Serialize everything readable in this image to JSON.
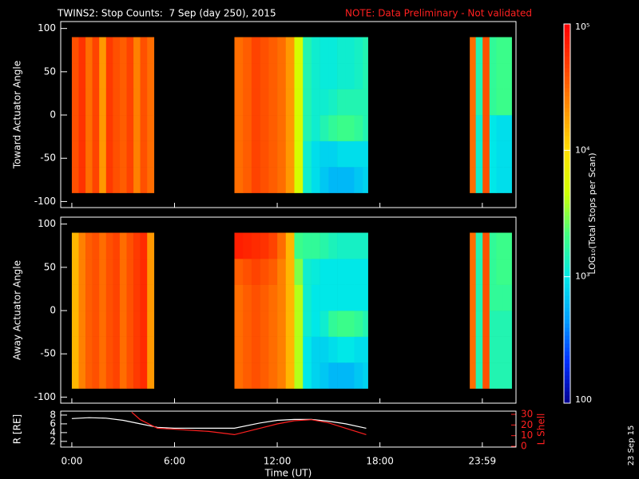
{
  "title": "TWINS2: Stop Counts:  7 Sep (day 250), 2015",
  "note": "NOTE: Data Preliminary - Not validated",
  "date_stamp": "23 Sep 15",
  "colorbar": {
    "label": "LOG₁₀(Total Stops per Scan)",
    "log": true,
    "lim": [
      100,
      100000
    ],
    "ticks": [
      {
        "value": 100000,
        "label": "10⁵"
      },
      {
        "value": 10000,
        "label": "10⁴"
      },
      {
        "value": 1000,
        "label": "10³"
      },
      100
    ],
    "colormap": [
      "#000090",
      "#0030ff",
      "#00a0ff",
      "#00e8e8",
      "#40ff80",
      "#d0ff00",
      "#ffe000",
      "#ff9000",
      "#ff4000",
      "#ff0000"
    ]
  },
  "chart_data": [
    {
      "type": "heatmap",
      "ylabel": "Toward Actuator Angle",
      "xlim": [
        -0.65,
        25.95
      ],
      "ylim": [
        -107,
        108
      ],
      "yticks": [
        -100,
        -50,
        0,
        50,
        100
      ],
      "y_bins": [
        -90,
        -60,
        -30,
        0,
        30,
        60,
        90
      ],
      "blocks": [
        {
          "x_bins": [
            0,
            0.4,
            0.8,
            1.2,
            1.6,
            2.0,
            2.4,
            2.8,
            3.2,
            3.6,
            4.0,
            4.4,
            4.8
          ],
          "values": [
            [
              40000,
              55000,
              30000,
              45000,
              20000,
              50000,
              40000,
              35000,
              45000,
              25000,
              40000,
              30000
            ],
            [
              40000,
              55000,
              30000,
              45000,
              20000,
              50000,
              40000,
              35000,
              45000,
              25000,
              40000,
              30000
            ],
            [
              40000,
              55000,
              30000,
              45000,
              20000,
              50000,
              40000,
              35000,
              45000,
              25000,
              40000,
              30000
            ],
            [
              40000,
              55000,
              30000,
              45000,
              20000,
              50000,
              40000,
              35000,
              45000,
              25000,
              40000,
              30000
            ],
            [
              40000,
              55000,
              30000,
              45000,
              20000,
              50000,
              40000,
              35000,
              45000,
              25000,
              40000,
              30000
            ],
            [
              40000,
              55000,
              30000,
              45000,
              20000,
              50000,
              40000,
              35000,
              45000,
              25000,
              40000,
              30000
            ]
          ]
        },
        {
          "x_bins": [
            9.5,
            10,
            10.5,
            11,
            11.5,
            12,
            12.5,
            13,
            13.5,
            14,
            14.5,
            15,
            15.5,
            16,
            16.5,
            17,
            17.3
          ],
          "values": [
            [
              30000,
              35000,
              45000,
              40000,
              35000,
              30000,
              20000,
              5000,
              1200,
              900,
              700,
              600,
              600,
              600,
              700,
              800
            ],
            [
              30000,
              35000,
              45000,
              40000,
              35000,
              30000,
              20000,
              5000,
              1200,
              900,
              800,
              800,
              900,
              900,
              900,
              900
            ],
            [
              30000,
              35000,
              45000,
              40000,
              35000,
              30000,
              20000,
              5000,
              1500,
              1200,
              1500,
              1800,
              2000,
              2000,
              1800,
              1500
            ],
            [
              30000,
              35000,
              45000,
              40000,
              35000,
              30000,
              20000,
              5000,
              1500,
              1200,
              1200,
              1300,
              1500,
              1500,
              1500,
              1500
            ],
            [
              30000,
              35000,
              45000,
              40000,
              35000,
              30000,
              20000,
              5000,
              1500,
              1200,
              1100,
              1100,
              1200,
              1200,
              1300,
              1500
            ],
            [
              30000,
              35000,
              45000,
              40000,
              35000,
              30000,
              20000,
              5000,
              1500,
              1200,
              1100,
              1100,
              1200,
              1200,
              1300,
              1500
            ]
          ]
        },
        {
          "x_bins": [
            23.25,
            23.6,
            24,
            24.4,
            24.8,
            25.2,
            25.7
          ],
          "values": [
            [
              30000,
              1200,
              40000,
              1000,
              900,
              900
            ],
            [
              30000,
              1200,
              40000,
              1000,
              900,
              900
            ],
            [
              30000,
              1200,
              40000,
              1000,
              900,
              900
            ],
            [
              30000,
              1500,
              40000,
              1800,
              2000,
              2000
            ],
            [
              30000,
              1500,
              40000,
              1800,
              2000,
              2000
            ],
            [
              30000,
              1500,
              40000,
              1800,
              2000,
              2000
            ]
          ]
        }
      ]
    },
    {
      "type": "heatmap",
      "ylabel": "Away Actuator Angle",
      "xlim": [
        -0.65,
        25.95
      ],
      "ylim": [
        -107,
        108
      ],
      "yticks": [
        -100,
        -50,
        0,
        50,
        100
      ],
      "y_bins": [
        -90,
        -60,
        -30,
        0,
        30,
        60,
        90
      ],
      "blocks": [
        {
          "x_bins": [
            0,
            0.4,
            0.8,
            1.2,
            1.6,
            2.0,
            2.4,
            2.8,
            3.2,
            3.6,
            4.0,
            4.4,
            4.8
          ],
          "values": [
            [
              15000,
              25000,
              35000,
              40000,
              30000,
              40000,
              45000,
              30000,
              40000,
              50000,
              60000,
              20000
            ],
            [
              15000,
              25000,
              35000,
              40000,
              30000,
              40000,
              45000,
              30000,
              40000,
              50000,
              60000,
              20000
            ],
            [
              15000,
              25000,
              35000,
              40000,
              30000,
              40000,
              45000,
              30000,
              40000,
              50000,
              60000,
              20000
            ],
            [
              15000,
              25000,
              35000,
              40000,
              30000,
              40000,
              45000,
              30000,
              40000,
              50000,
              60000,
              20000
            ],
            [
              15000,
              25000,
              35000,
              40000,
              30000,
              40000,
              45000,
              30000,
              40000,
              50000,
              60000,
              20000
            ],
            [
              15000,
              25000,
              35000,
              40000,
              30000,
              40000,
              45000,
              30000,
              40000,
              50000,
              60000,
              20000
            ]
          ]
        },
        {
          "x_bins": [
            9.5,
            10,
            10.5,
            11,
            11.5,
            12,
            12.5,
            13,
            13.5,
            14,
            14.5,
            15,
            15.5,
            16,
            16.5,
            17,
            17.3
          ],
          "values": [
            [
              30000,
              35000,
              40000,
              35000,
              30000,
              25000,
              15000,
              4000,
              1000,
              800,
              700,
              600,
              600,
              600,
              700,
              800
            ],
            [
              30000,
              35000,
              40000,
              35000,
              30000,
              25000,
              15000,
              4000,
              1000,
              800,
              800,
              900,
              1000,
              1000,
              900,
              900
            ],
            [
              30000,
              35000,
              40000,
              35000,
              30000,
              25000,
              15000,
              4000,
              1200,
              1000,
              1200,
              1800,
              2000,
              2000,
              1800,
              1500
            ],
            [
              30000,
              35000,
              40000,
              35000,
              30000,
              25000,
              15000,
              4000,
              1200,
              1000,
              1000,
              1000,
              1000,
              1000,
              1000,
              1000
            ],
            [
              35000,
              40000,
              45000,
              40000,
              35000,
              25000,
              15000,
              3000,
              1200,
              1100,
              1000,
              1000,
              1000,
              1000,
              1000,
              1000
            ],
            [
              70000,
              65000,
              60000,
              55000,
              45000,
              30000,
              15000,
              2000,
              1800,
              1800,
              1600,
              1400,
              1300,
              1300,
              1300,
              1300
            ]
          ]
        },
        {
          "x_bins": [
            23.25,
            23.6,
            24,
            24.4,
            24.8,
            25.2,
            25.7
          ],
          "values": [
            [
              30000,
              1500,
              40000,
              1500,
              1500,
              1500
            ],
            [
              30000,
              1500,
              40000,
              1500,
              1500,
              1500
            ],
            [
              30000,
              1500,
              40000,
              1500,
              1500,
              1500
            ],
            [
              30000,
              1500,
              40000,
              1800,
              1800,
              1800
            ],
            [
              30000,
              1500,
              40000,
              1800,
              2000,
              2000
            ],
            [
              30000,
              1500,
              40000,
              1800,
              2000,
              2000
            ]
          ]
        }
      ]
    },
    {
      "type": "line",
      "xlabel": "Time (UT)",
      "ylabel": "R [RE]",
      "y2label": "L Shell",
      "xlim": [
        -0.65,
        25.95
      ],
      "ylim": [
        0.7,
        8.9
      ],
      "y2lim": [
        -0.7,
        33
      ],
      "xticks": [
        {
          "value": 0,
          "label": "0:00"
        },
        {
          "value": 6,
          "label": "6:00"
        },
        {
          "value": 12,
          "label": "12:00"
        },
        {
          "value": 18,
          "label": "18:00"
        },
        {
          "value": 23.983,
          "label": "23:59"
        }
      ],
      "yticks": [
        2,
        4,
        6,
        8
      ],
      "y2ticks": [
        0,
        10,
        20,
        30
      ],
      "series": [
        {
          "color": "#ffffff",
          "x": [
            0,
            1,
            2,
            3,
            4,
            5,
            6,
            8,
            9.5,
            11,
            12,
            13,
            14,
            15,
            16,
            17.2
          ],
          "values": [
            7.2,
            7.4,
            7.3,
            6.8,
            6.0,
            5.2,
            5.0,
            5.0,
            5.0,
            6.2,
            6.8,
            7.0,
            7.0,
            6.6,
            6.0,
            5.0
          ]
        },
        {
          "color": "#ff2020",
          "axis": "y2",
          "x": [
            3.5,
            4,
            5,
            6,
            8,
            9.5,
            11,
            12,
            13,
            14,
            15,
            16,
            17.2
          ],
          "values": [
            32,
            25,
            17,
            16,
            14,
            11,
            17,
            21,
            24,
            25,
            22,
            17,
            11
          ]
        }
      ]
    }
  ]
}
